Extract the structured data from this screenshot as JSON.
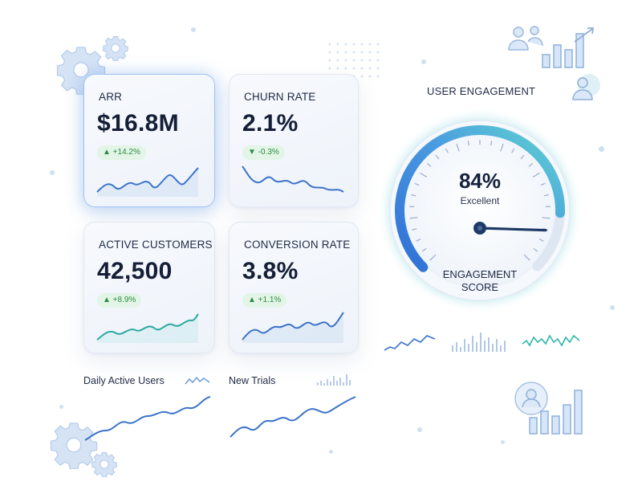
{
  "kpis": [
    {
      "label": "ARR",
      "value": "$16.8M",
      "change": "▲ +14.2%",
      "direction": "up"
    },
    {
      "label": "CHURN RATE",
      "value": "2.1%",
      "change": "▼ -0.3%",
      "direction": "down"
    },
    {
      "label": "ACTIVE CUSTOMERS",
      "value": "42,500",
      "change": "▲ +8.9%",
      "direction": "up"
    },
    {
      "label": "CONVERSION RATE",
      "value": "3.8%",
      "change": "▲ +1.1%",
      "direction": "up"
    }
  ],
  "engagement": {
    "title": "USER ENGAGEMENT",
    "score": "84%",
    "rating": "Excellent",
    "label_line1": "ENGAGEMENT",
    "label_line2": "SCORE",
    "value_fraction": 0.84
  },
  "mini_charts": {
    "daily_active_users": "Daily Active Users",
    "new_trials": "New Trials"
  },
  "colors": {
    "accent": "#2f6fd6",
    "accent_light": "#5fd4d0",
    "positive_badge_bg": "#e2f5e6",
    "positive_badge_text": "#2f8a45",
    "line": "#3d74c9"
  },
  "icons": [
    "gear-icon",
    "users-icon",
    "bar-chart-icon",
    "user-icon"
  ]
}
